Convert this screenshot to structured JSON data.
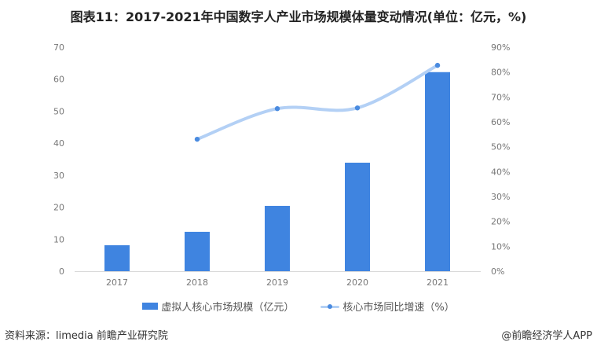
{
  "title": "图表11：2017-2021年中国数字人产业市场规模体量变动情况(单位：亿元，%)",
  "chart_data": {
    "type": "bar+line",
    "categories": [
      "2017",
      "2018",
      "2019",
      "2020",
      "2021"
    ],
    "series": [
      {
        "name": "虚拟人核心市场规模（亿元）",
        "type": "bar",
        "axis": "left",
        "values": [
          8.1,
          12.3,
          20.4,
          33.9,
          62.2
        ],
        "color": "#3f84e0"
      },
      {
        "name": "核心市场同比增速（%）",
        "type": "line",
        "axis": "right",
        "values": [
          null,
          53.0,
          65.3,
          65.6,
          82.7
        ],
        "color": "#b3d0f5",
        "marker_color": "#4a8be0"
      }
    ],
    "left_axis": {
      "ylim": [
        0,
        70
      ],
      "ticks": [
        "0",
        "10",
        "20",
        "30",
        "40",
        "50",
        "60",
        "70"
      ]
    },
    "right_axis": {
      "ylim": [
        0,
        90
      ],
      "ticks": [
        "0%",
        "10%",
        "20%",
        "30%",
        "40%",
        "50%",
        "60%",
        "70%",
        "80%",
        "90%"
      ]
    },
    "grid": false,
    "legend": "bottom"
  },
  "source": "资料来源：limedia 前瞻产业研究院",
  "brand": "@前瞻经济学人APP"
}
